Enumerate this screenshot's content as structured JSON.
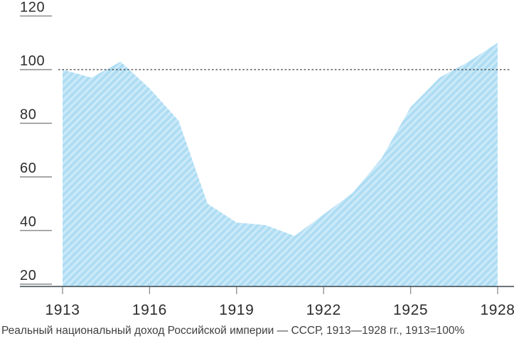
{
  "chart_data": {
    "type": "area",
    "caption": "Реальный национальный доход Российской империи — СССР, 1913—1928 гг., 1913=100%",
    "x": [
      1913,
      1914,
      1915,
      1916,
      1917,
      1918,
      1919,
      1920,
      1921,
      1922,
      1923,
      1924,
      1925,
      1926,
      1927,
      1928
    ],
    "values": [
      100,
      97,
      103,
      93,
      81,
      50,
      43,
      42,
      38,
      46,
      54,
      67,
      86,
      97,
      103,
      110
    ],
    "x_ticks": [
      1913,
      1916,
      1919,
      1922,
      1925,
      1928
    ],
    "y_ticks": [
      120,
      100,
      80,
      60,
      40,
      20
    ],
    "xlim": [
      1913,
      1928
    ],
    "ylim": [
      20,
      120
    ],
    "reference_line": 100,
    "grid": "off",
    "legend": "none",
    "colors": {
      "area_base": "#aeddf3",
      "area_stripe": "#cdeaf9",
      "axis_line": "#46525a",
      "tick_line": "#8c8c8c",
      "reference_line_color": "#3c3c3c",
      "label_color": "#2d2d2d",
      "caption_color": "#3f3f3f",
      "background": "#ffffff"
    }
  }
}
